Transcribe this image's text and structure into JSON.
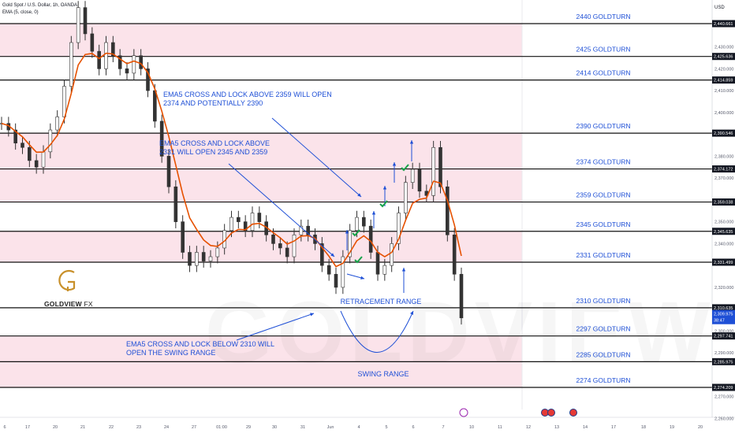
{
  "header": {
    "symbol": "Gold Spot / U.S. Dollar, 1h, OANDA",
    "indicator": "EMA (5, close, 0)",
    "currency": "USD"
  },
  "brand": {
    "name_main": "GOLDVIEW",
    "name_suffix": "FX",
    "watermark": "GOLDVIEW"
  },
  "colors": {
    "zone_fill": "#fbe3ea",
    "level_line": "#111111",
    "level_text": "#1e4fd6",
    "annotation": "#1e4fd6",
    "check": "#17a34a",
    "candle": "#333333",
    "ema": "#e65100",
    "logo": "#c8902a"
  },
  "chart_data": {
    "type": "line",
    "series": [
      {
        "values": [
          2395,
          2392,
          2386,
          2384,
          2378,
          2375,
          2382,
          2392,
          2398,
          2412,
          2432,
          2448,
          2436,
          2428,
          2420,
          2432,
          2426,
          2420,
          2418,
          2426,
          2420,
          2410,
          2396,
          2380,
          2366,
          2350,
          2336,
          2330,
          2336,
          2332,
          2334,
          2338,
          2346,
          2352,
          2350,
          2346,
          2354,
          2350,
          2344,
          2340,
          2338,
          2334,
          2344,
          2348,
          2344,
          2340,
          2330,
          2326,
          2320,
          2334,
          2346,
          2352,
          2348,
          2336,
          2326,
          2330,
          2340,
          2354,
          2368,
          2374,
          2364,
          2362,
          2384,
          2366,
          2344,
          2326,
          2306
        ]
      }
    ],
    "levels": [
      {
        "label": "2440 GOLDTURN",
        "price": 2440.661
      },
      {
        "label": "2425 GOLDTURN",
        "price": 2425.636
      },
      {
        "label": "2414 GOLDTURN",
        "price": 2414.859
      },
      {
        "label": "2390 GOLDTURN",
        "price": 2390.546
      },
      {
        "label": "2374 GOLDTURN",
        "price": 2374.172
      },
      {
        "label": "2359 GOLDTURN",
        "price": 2359.038
      },
      {
        "label": "2345 GOLDTURN",
        "price": 2345.635
      },
      {
        "label": "2331 GOLDTURN",
        "price": 2331.499
      },
      {
        "label": "2310 GOLDTURN",
        "price": 2310.635
      },
      {
        "label": "2297 GOLDTURN",
        "price": 2297.741
      },
      {
        "label": "2285 GOLDTURN",
        "price": 2285.975
      },
      {
        "label": "2274 GOLDTURN",
        "price": 2274.209
      }
    ],
    "level_price_labels": [
      "2,440.661",
      "2,425.636",
      "2,414.859",
      "2,390.546",
      "2,374.172",
      "2,359.038",
      "2,345.635",
      "2,331.499",
      "2,310.635",
      "2,297.741",
      "2,285.975",
      "2,274.209"
    ],
    "current_price_label": [
      "2,309.975",
      "38:47"
    ],
    "zones": [
      [
        2425.636,
        2440.661
      ],
      [
        2374.172,
        2390.546
      ],
      [
        2359.038,
        2374.172
      ],
      [
        2331.499,
        2345.635
      ],
      [
        2285.975,
        2297.741
      ],
      [
        2274.209,
        2285.975
      ]
    ],
    "y_ticks": [
      "2,430.000",
      "2,420.000",
      "2,410.000",
      "2,400.000",
      "2,380.000",
      "2,370.000",
      "2,350.000",
      "2,340.000",
      "2,320.000",
      "2,300.000",
      "2,290.000",
      "2,270.000",
      "2,260.000"
    ],
    "x_ticks": [
      "6",
      "17",
      "20",
      "21",
      "22",
      "23",
      "24",
      "27",
      "01:00",
      "29",
      "30",
      "31",
      "Jun",
      "4",
      "5",
      "6",
      "7",
      "10",
      "11",
      "12",
      "13",
      "14",
      "17",
      "18",
      "19",
      "20"
    ],
    "annotations": [
      "EMA5 CROSS AND LOCK ABOVE 2359 WILL OPEN 2374 AND POTENTIALLY 2390",
      "EMA5 CROSS AND LOCK ABOVE 2331 WILL OPEN 2345 AND 2359",
      "EMA5 CROSS AND LOCK BELOW 2310 WILL OPEN THE SWING RANGE",
      "RETRACEMENT RANGE",
      "SWING RANGE"
    ],
    "ylim": [
      2256,
      2450
    ]
  }
}
